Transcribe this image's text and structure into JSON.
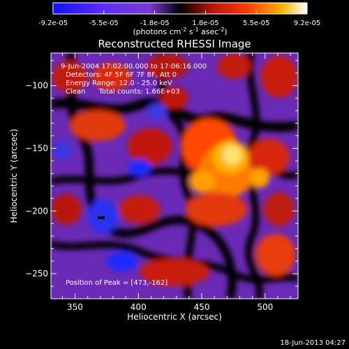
{
  "chart_data": {
    "type": "heatmap",
    "title": "Reconstructed RHESSI Image",
    "xlabel": "Heliocentric X (arcsec)",
    "ylabel": "Heliocentric Y (arcsec)",
    "xlim": [
      331,
      526
    ],
    "ylim": [
      -270,
      -74
    ],
    "x_ticks": [
      350,
      400,
      450,
      500
    ],
    "y_ticks": [
      -100,
      -150,
      -200,
      -250
    ],
    "colorbar": {
      "min": -9.2e-05,
      "max": 9.2e-05,
      "tick_labels": [
        "-9.2e-05",
        "-5.5e-05",
        "-1.8e-05",
        "1.8e-05",
        "5.5e-05",
        "9.2e-05"
      ],
      "label_main": "(photons cm",
      "label_sup1": "-2",
      "label_mid": " s",
      "label_sup2": "-1",
      "label_tail": " asec",
      "label_sup3": "-2",
      "label_end": ")"
    },
    "annotations": [
      "9-Jun-2004 17:02:00.000 to 17:06:16.000",
      "Detectors: 4F 5F 6F 7F 8F, Att 0",
      "Energy Range: 12.0 - 25.0 keV",
      "Clean      Total counts: 1.66E+03"
    ],
    "peak_label": "Position of Peak = [473,-162]",
    "grid": false
  },
  "footer_timestamp": "18-Jun-2013 04:27"
}
